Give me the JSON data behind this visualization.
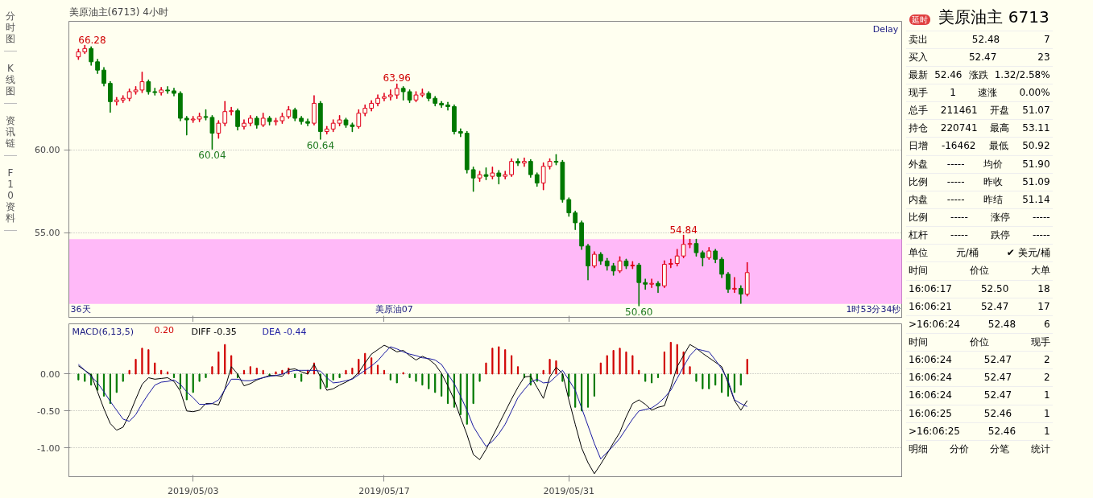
{
  "chart_data": [
    {
      "type": "other",
      "annotations": [
        "分时图",
        "K线图",
        "资讯链",
        "F10资料"
      ]
    },
    {
      "type": "candlestick",
      "title": "美原油主(6713) 4小时",
      "categories": [
        null,
        null,
        null,
        null,
        null,
        null,
        null,
        null,
        null,
        null,
        null,
        null,
        null,
        null,
        null,
        null,
        null,
        null,
        "2019/05/03",
        null,
        null,
        null,
        null,
        null,
        null,
        null,
        null,
        null,
        null,
        null,
        null,
        null,
        null,
        null,
        null,
        null,
        null,
        null,
        null,
        null,
        null,
        null,
        null,
        null,
        null,
        null,
        null,
        null,
        "2019/05/17",
        null,
        null,
        null,
        null,
        null,
        null,
        null,
        null,
        null,
        null,
        null,
        null,
        null,
        null,
        null,
        null,
        null,
        null,
        null,
        null,
        null,
        null,
        null,
        null,
        null,
        null,
        null,
        null,
        "2019/05/31",
        null,
        null,
        null,
        null,
        null,
        null,
        null,
        null,
        null,
        null,
        null,
        null,
        null,
        null,
        null,
        null,
        null,
        null,
        null,
        null,
        null,
        null,
        null,
        null,
        null,
        null,
        null,
        null
      ],
      "ohlc": [
        [
          65.6,
          66.05,
          65.45,
          65.9
        ],
        [
          65.9,
          66.28,
          65.8,
          66.1
        ],
        [
          66.1,
          66.2,
          65.1,
          65.3
        ],
        [
          65.3,
          65.45,
          64.6,
          64.8
        ],
        [
          64.8,
          64.95,
          63.85,
          64.0
        ],
        [
          64.0,
          64.1,
          62.26,
          62.9
        ],
        [
          62.9,
          63.15,
          62.7,
          63.0
        ],
        [
          63.0,
          63.25,
          62.85,
          63.1
        ],
        [
          63.1,
          63.65,
          62.95,
          63.5
        ],
        [
          63.5,
          63.8,
          63.35,
          63.6
        ],
        [
          63.6,
          64.67,
          63.45,
          64.1
        ],
        [
          64.1,
          64.2,
          63.35,
          63.5
        ],
        [
          63.5,
          63.7,
          63.3,
          63.45
        ],
        [
          63.45,
          63.75,
          63.3,
          63.6
        ],
        [
          63.6,
          63.8,
          63.4,
          63.55
        ],
        [
          63.55,
          63.7,
          63.25,
          63.4
        ],
        [
          63.4,
          63.5,
          61.75,
          61.9
        ],
        [
          61.9,
          62.0,
          60.9,
          61.8
        ],
        [
          61.8,
          62.0,
          61.65,
          61.85
        ],
        [
          61.85,
          62.2,
          61.7,
          62.0
        ],
        [
          62.0,
          62.4,
          61.8,
          61.95
        ],
        [
          61.95,
          62.05,
          60.04,
          61.0
        ],
        [
          61.0,
          61.75,
          60.7,
          61.6
        ],
        [
          61.6,
          62.9,
          61.45,
          62.3
        ],
        [
          62.3,
          62.55,
          62.1,
          62.35
        ],
        [
          62.35,
          62.45,
          61.2,
          61.4
        ],
        [
          61.4,
          61.8,
          61.25,
          61.6
        ],
        [
          61.6,
          62.05,
          61.45,
          61.9
        ],
        [
          61.9,
          62.0,
          61.3,
          61.5
        ],
        [
          61.5,
          62.2,
          61.4,
          61.9
        ],
        [
          61.9,
          62.0,
          61.5,
          61.7
        ],
        [
          61.7,
          61.9,
          61.5,
          61.75
        ],
        [
          61.75,
          62.2,
          61.6,
          62.0
        ],
        [
          62.0,
          62.6,
          61.9,
          62.4
        ],
        [
          62.4,
          62.5,
          61.75,
          61.9
        ],
        [
          61.9,
          62.0,
          61.55,
          61.7
        ],
        [
          61.7,
          61.85,
          61.45,
          61.6
        ],
        [
          61.6,
          63.25,
          61.5,
          62.8
        ],
        [
          62.8,
          62.9,
          60.64,
          61.1
        ],
        [
          61.1,
          61.4,
          60.95,
          61.25
        ],
        [
          61.25,
          61.8,
          61.1,
          61.6
        ],
        [
          61.6,
          62.05,
          61.45,
          61.8
        ],
        [
          61.8,
          61.9,
          61.35,
          61.5
        ],
        [
          61.5,
          61.6,
          61.1,
          61.4
        ],
        [
          61.4,
          62.4,
          61.3,
          62.2
        ],
        [
          62.2,
          62.7,
          62.05,
          62.5
        ],
        [
          62.5,
          62.95,
          62.35,
          62.8
        ],
        [
          62.8,
          63.3,
          62.65,
          63.1
        ],
        [
          63.1,
          63.4,
          62.95,
          63.2
        ],
        [
          63.2,
          63.6,
          63.0,
          63.3
        ],
        [
          63.3,
          63.96,
          63.1,
          63.7
        ],
        [
          63.7,
          63.8,
          63.0,
          63.5
        ],
        [
          63.5,
          63.6,
          62.85,
          63.0
        ],
        [
          63.0,
          63.5,
          62.9,
          63.3
        ],
        [
          63.3,
          63.65,
          63.2,
          63.4
        ],
        [
          63.4,
          63.5,
          62.95,
          63.1
        ],
        [
          63.1,
          63.2,
          62.65,
          62.8
        ],
        [
          62.8,
          62.9,
          62.55,
          62.7
        ],
        [
          62.7,
          62.85,
          62.4,
          62.6
        ],
        [
          62.6,
          62.7,
          60.95,
          61.1
        ],
        [
          61.1,
          61.25,
          60.8,
          61.0
        ],
        [
          61.0,
          61.1,
          58.6,
          58.8
        ],
        [
          58.8,
          58.95,
          57.5,
          58.3
        ],
        [
          58.3,
          58.7,
          58.1,
          58.5
        ],
        [
          58.5,
          58.9,
          58.2,
          58.4
        ],
        [
          58.4,
          58.95,
          58.25,
          58.6
        ],
        [
          58.6,
          58.75,
          57.95,
          58.4
        ],
        [
          58.4,
          58.7,
          58.25,
          58.5
        ],
        [
          58.5,
          59.45,
          58.4,
          59.3
        ],
        [
          59.3,
          59.45,
          59.05,
          59.2
        ],
        [
          59.2,
          59.5,
          59.0,
          59.3
        ],
        [
          59.3,
          59.4,
          58.35,
          58.5
        ],
        [
          58.5,
          58.6,
          57.8,
          58.0
        ],
        [
          58.0,
          59.2,
          57.6,
          59.0
        ],
        [
          59.0,
          59.45,
          58.85,
          59.3
        ],
        [
          59.3,
          59.7,
          59.1,
          59.25
        ],
        [
          59.25,
          59.35,
          56.85,
          57.0
        ],
        [
          57.0,
          57.1,
          56.0,
          56.2
        ],
        [
          56.2,
          56.3,
          55.2,
          55.6
        ],
        [
          55.6,
          55.7,
          54.0,
          54.2
        ],
        [
          54.2,
          54.3,
          52.17,
          53.0
        ],
        [
          53.0,
          53.85,
          52.9,
          53.7
        ],
        [
          53.7,
          53.8,
          53.1,
          53.3
        ],
        [
          53.3,
          53.45,
          52.75,
          53.0
        ],
        [
          53.0,
          53.15,
          52.45,
          52.7
        ],
        [
          52.7,
          53.55,
          52.6,
          53.3
        ],
        [
          53.3,
          53.4,
          52.85,
          53.0
        ],
        [
          53.0,
          53.25,
          52.85,
          53.05
        ],
        [
          53.05,
          53.15,
          50.6,
          52.0
        ],
        [
          52.0,
          52.2,
          51.6,
          51.9
        ],
        [
          51.9,
          52.2,
          51.7,
          51.95
        ],
        [
          51.95,
          52.05,
          51.4,
          51.8
        ],
        [
          51.8,
          53.3,
          51.7,
          53.1
        ],
        [
          53.1,
          53.4,
          52.9,
          53.15
        ],
        [
          53.15,
          54.0,
          53.0,
          53.6
        ],
        [
          53.6,
          54.84,
          53.5,
          54.3
        ],
        [
          54.3,
          54.6,
          54.1,
          54.35
        ],
        [
          54.35,
          54.6,
          53.6,
          53.8
        ],
        [
          53.8,
          53.9,
          53.0,
          53.5
        ],
        [
          53.5,
          54.1,
          53.4,
          53.9
        ],
        [
          53.9,
          54.0,
          53.2,
          53.4
        ],
        [
          53.4,
          53.5,
          52.3,
          52.5
        ],
        [
          52.5,
          52.6,
          51.4,
          51.6
        ],
        [
          51.6,
          52.3,
          51.4,
          51.65
        ],
        [
          51.65,
          51.8,
          50.75,
          51.3
        ],
        [
          51.3,
          53.2,
          51.2,
          52.6
        ]
      ],
      "colors": [
        "#e0001b",
        "#e0001b",
        "#007800",
        "#007800",
        "#007800",
        "#007800",
        "#e0001b",
        "#e0001b",
        "#e0001b",
        "#e0001b",
        "#e0001b",
        "#007800",
        "#007800",
        "#e0001b",
        "#007800",
        "#007800",
        "#007800",
        "#007800",
        "#e0001b",
        "#e0001b",
        "#007800",
        "#007800",
        "#e0001b",
        "#e0001b",
        "#e0001b",
        "#007800",
        "#e0001b",
        "#e0001b",
        "#007800",
        "#e0001b",
        "#007800",
        "#e0001b",
        "#e0001b",
        "#e0001b",
        "#007800",
        "#007800",
        "#007800",
        "#e0001b",
        "#007800",
        "#e0001b",
        "#e0001b",
        "#e0001b",
        "#007800",
        "#007800",
        "#e0001b",
        "#e0001b",
        "#e0001b",
        "#e0001b",
        "#e0001b",
        "#e0001b",
        "#e0001b",
        "#007800",
        "#007800",
        "#e0001b",
        "#e0001b",
        "#007800",
        "#007800",
        "#007800",
        "#007800",
        "#007800",
        "#007800",
        "#007800",
        "#007800",
        "#e0001b",
        "#007800",
        "#e0001b",
        "#007800",
        "#e0001b",
        "#e0001b",
        "#007800",
        "#e0001b",
        "#007800",
        "#007800",
        "#e0001b",
        "#e0001b",
        "#007800",
        "#007800",
        "#007800",
        "#007800",
        "#007800",
        "#007800",
        "#e0001b",
        "#007800",
        "#007800",
        "#007800",
        "#e0001b",
        "#007800",
        "#e0001b",
        "#007800",
        "#007800",
        "#e0001b",
        "#007800",
        "#e0001b",
        "#e0001b",
        "#e0001b",
        "#e0001b",
        "#e0001b",
        "#007800",
        "#007800",
        "#e0001b",
        "#007800",
        "#007800",
        "#007800",
        "#e0001b",
        "#007800",
        "#e0001b"
      ],
      "ylim": [
        49.9,
        67.74
      ],
      "yticks": [
        {
          "value": 60,
          "label": "60.00"
        },
        {
          "value": 55,
          "label": "55.00"
        }
      ],
      "tick_labels": "y",
      "grid": "y",
      "bands": [
        {
          "axis": "y",
          "from": 50.71,
          "to": 54.62,
          "color": "#ff80ff"
        }
      ],
      "annotations": [
        {
          "text": "66.28",
          "y": 66.28
        },
        {
          "text": "60.04",
          "y": 60.04
        },
        {
          "text": "60.64",
          "y": 60.64
        },
        {
          "text": "63.96",
          "y": 63.96
        },
        {
          "text": "50.60",
          "y": 50.6
        },
        {
          "text": "54.84",
          "y": 54.84
        },
        "36天",
        "美原油07",
        "1时53分34秒",
        "Delay"
      ]
    },
    {
      "type": "line",
      "title": "MACD(6,13,5)",
      "legend": "top left",
      "categories": [
        null,
        null,
        null,
        null,
        null,
        null,
        null,
        null,
        null,
        null,
        null,
        null,
        null,
        null,
        null,
        null,
        null,
        null,
        "2019/05/03",
        null,
        null,
        null,
        null,
        null,
        null,
        null,
        null,
        null,
        null,
        null,
        null,
        null,
        null,
        null,
        null,
        null,
        null,
        null,
        null,
        null,
        null,
        null,
        null,
        null,
        null,
        null,
        null,
        null,
        "2019/05/17",
        null,
        null,
        null,
        null,
        null,
        null,
        null,
        null,
        null,
        null,
        null,
        null,
        null,
        null,
        null,
        null,
        null,
        null,
        null,
        null,
        null,
        null,
        null,
        null,
        null,
        null,
        null,
        null,
        "2019/05/31",
        null,
        null,
        null,
        null,
        null,
        null,
        null,
        null,
        null,
        null,
        null,
        null,
        null,
        null,
        null,
        null,
        null,
        null,
        null,
        null,
        null,
        null,
        null,
        null,
        null,
        null,
        null,
        null
      ],
      "ylim": [
        -1.39,
        0.68
      ],
      "yticks": [
        {
          "value": 0,
          "label": "0.00"
        },
        {
          "value": -0.5,
          "label": "-0.50"
        },
        {
          "value": -1,
          "label": "-1.00"
        }
      ],
      "grid": "y",
      "series": [
        {
          "name": "0.20",
          "type": "bar",
          "values": [
            -0.08,
            -0.1,
            -0.15,
            -0.22,
            -0.3,
            -0.4,
            -0.25,
            -0.1,
            0.05,
            0.2,
            0.35,
            0.33,
            0.15,
            0.05,
            0.03,
            -0.05,
            -0.2,
            -0.35,
            -0.25,
            -0.1,
            -0.05,
            0.1,
            0.3,
            0.4,
            0.25,
            -0.05,
            0.05,
            0.1,
            0.08,
            0.05,
            -0.03,
            0.03,
            0.05,
            0.08,
            -0.05,
            -0.1,
            0.05,
            0.15,
            -0.2,
            -0.18,
            -0.08,
            -0.05,
            0.05,
            0.08,
            0.2,
            0.28,
            0.22,
            0.12,
            0.05,
            -0.08,
            -0.12,
            0.02,
            -0.05,
            -0.1,
            -0.15,
            -0.2,
            -0.25,
            -0.3,
            -0.4,
            -0.45,
            -0.55,
            -0.68,
            -0.4,
            -0.1,
            0.15,
            0.35,
            0.37,
            0.33,
            0.25,
            0.1,
            -0.05,
            -0.15,
            -0.1,
            0.05,
            0.2,
            0.18,
            -0.1,
            -0.3,
            -0.45,
            -0.5,
            -0.45,
            -0.3,
            0.15,
            0.25,
            0.32,
            0.35,
            0.3,
            0.25,
            0.05,
            -0.1,
            -0.12,
            -0.05,
            0.3,
            0.43,
            0.4,
            0.3,
            0.1,
            -0.1,
            -0.2,
            -0.2,
            -0.15,
            -0.25,
            -0.3,
            -0.25,
            -0.15,
            0.2
          ],
          "colors": [
            "#007800",
            "#007800",
            "#007800",
            "#007800",
            "#007800",
            "#007800",
            "#007800",
            "#007800",
            "#d00000",
            "#d00000",
            "#d00000",
            "#d00000",
            "#d00000",
            "#d00000",
            "#d00000",
            "#007800",
            "#007800",
            "#007800",
            "#007800",
            "#007800",
            "#007800",
            "#d00000",
            "#d00000",
            "#d00000",
            "#d00000",
            "#007800",
            "#d00000",
            "#d00000",
            "#d00000",
            "#d00000",
            "#007800",
            "#d00000",
            "#d00000",
            "#d00000",
            "#007800",
            "#007800",
            "#d00000",
            "#d00000",
            "#007800",
            "#007800",
            "#007800",
            "#007800",
            "#d00000",
            "#d00000",
            "#d00000",
            "#d00000",
            "#d00000",
            "#d00000",
            "#d00000",
            "#007800",
            "#007800",
            "#d00000",
            "#007800",
            "#007800",
            "#007800",
            "#007800",
            "#007800",
            "#007800",
            "#007800",
            "#007800",
            "#007800",
            "#007800",
            "#007800",
            "#007800",
            "#d00000",
            "#d00000",
            "#d00000",
            "#d00000",
            "#d00000",
            "#d00000",
            "#007800",
            "#007800",
            "#007800",
            "#d00000",
            "#d00000",
            "#d00000",
            "#007800",
            "#007800",
            "#007800",
            "#007800",
            "#007800",
            "#007800",
            "#d00000",
            "#d00000",
            "#d00000",
            "#d00000",
            "#d00000",
            "#d00000",
            "#d00000",
            "#007800",
            "#007800",
            "#007800",
            "#d00000",
            "#d00000",
            "#d00000",
            "#d00000",
            "#d00000",
            "#007800",
            "#007800",
            "#007800",
            "#007800",
            "#007800",
            "#007800",
            "#007800",
            "#007800",
            "#d00000"
          ]
        },
        {
          "name": "DIFF -0.35",
          "type": "line",
          "color": "#000000",
          "values": [
            0.11,
            0.05,
            -0.01,
            -0.24,
            -0.47,
            -0.67,
            -0.76,
            -0.72,
            -0.55,
            -0.34,
            -0.14,
            -0.05,
            -0.07,
            -0.06,
            -0.05,
            -0.1,
            -0.23,
            -0.5,
            -0.51,
            -0.49,
            -0.4,
            -0.4,
            -0.42,
            -0.2,
            0.1,
            0.0,
            -0.16,
            -0.13,
            -0.08,
            -0.05,
            -0.02,
            -0.02,
            -0.03,
            0.06,
            0.07,
            0.03,
            0.0,
            0.13,
            -0.04,
            -0.22,
            -0.2,
            -0.15,
            -0.11,
            -0.06,
            0.02,
            0.15,
            0.27,
            0.33,
            0.39,
            0.35,
            0.3,
            0.32,
            0.25,
            0.19,
            0.24,
            0.2,
            0.13,
            0.01,
            -0.16,
            -0.35,
            -0.59,
            -0.82,
            -1.09,
            -1.16,
            -1.02,
            -0.85,
            -0.68,
            -0.51,
            -0.34,
            -0.18,
            -0.04,
            -0.03,
            -0.18,
            -0.33,
            -0.04,
            0.09,
            0.01,
            -0.35,
            -0.68,
            -1.0,
            -1.2,
            -1.35,
            -1.22,
            -1.08,
            -0.93,
            -0.79,
            -0.58,
            -0.4,
            -0.35,
            -0.41,
            -0.49,
            -0.45,
            -0.43,
            -0.18,
            0.1,
            0.25,
            0.4,
            0.35,
            0.28,
            0.22,
            0.16,
            0.1,
            -0.12,
            -0.36,
            -0.49,
            -0.36
          ]
        },
        {
          "name": "DEA -0.44",
          "type": "line",
          "color": "#1a1aa0",
          "values": [
            0.13,
            0.05,
            -0.03,
            -0.12,
            -0.24,
            -0.37,
            -0.49,
            -0.61,
            -0.64,
            -0.55,
            -0.4,
            -0.27,
            -0.15,
            -0.11,
            -0.1,
            -0.08,
            -0.14,
            -0.24,
            -0.32,
            -0.41,
            -0.41,
            -0.4,
            -0.35,
            -0.21,
            -0.07,
            -0.07,
            -0.09,
            -0.09,
            -0.07,
            -0.05,
            -0.03,
            -0.02,
            0.0,
            0.03,
            0.05,
            0.05,
            0.05,
            0.05,
            0.04,
            -0.05,
            -0.12,
            -0.11,
            -0.09,
            -0.07,
            -0.01,
            0.05,
            0.11,
            0.18,
            0.28,
            0.37,
            0.34,
            0.3,
            0.27,
            0.25,
            0.22,
            0.21,
            0.19,
            0.13,
            0.0,
            -0.13,
            -0.3,
            -0.49,
            -0.71,
            -0.85,
            -0.98,
            -0.91,
            -0.81,
            -0.68,
            -0.5,
            -0.32,
            -0.21,
            -0.11,
            -0.07,
            -0.12,
            -0.11,
            -0.03,
            0.05,
            -0.08,
            -0.22,
            -0.46,
            -0.7,
            -0.94,
            -1.15,
            -1.06,
            -0.97,
            -0.87,
            -0.74,
            -0.61,
            -0.5,
            -0.48,
            -0.46,
            -0.4,
            -0.32,
            -0.22,
            -0.06,
            0.1,
            0.25,
            0.34,
            0.32,
            0.3,
            0.19,
            0.07,
            -0.09,
            -0.35,
            -0.4,
            -0.44
          ]
        }
      ]
    },
    {
      "type": "other",
      "title": "美原油主  6713",
      "subtitle": "延时",
      "annotations": [
        "卖出\t52.48\t7",
        "买入\t52.47\t23",
        "最新\t52.46\t涨跌\t1.32/2.58%",
        "现手\t1\t速涨\t0.00%",
        "总手\t211461\t开盘\t51.07",
        "持仓\t220741\t最高\t53.11",
        "日增\t-16462\t最低\t50.92",
        "外盘\t-----\t均价\t51.90",
        "比例\t-----\t昨收\t51.09",
        "内盘\t-----\t昨结\t51.14",
        "比例\t-----\t涨停\t-----",
        "杠杆\t-----\t跌停\t-----",
        "单位\t元/桶\t✔ 美元/桶",
        "时间\t价位\t大单",
        "16:06:17\t52.50\t18",
        "16:06:21\t52.47\t17",
        ">16:06:24\t52.48\t6",
        "时间\t价位\t现手",
        "16:06:24\t52.47\t2",
        "16:06:24\t52.47\t2",
        "16:06:24\t52.47\t1",
        "16:06:25\t52.46\t1",
        ">16:06:25\t52.46\t1",
        "明细\t分价\t分笔\t统计"
      ]
    }
  ]
}
